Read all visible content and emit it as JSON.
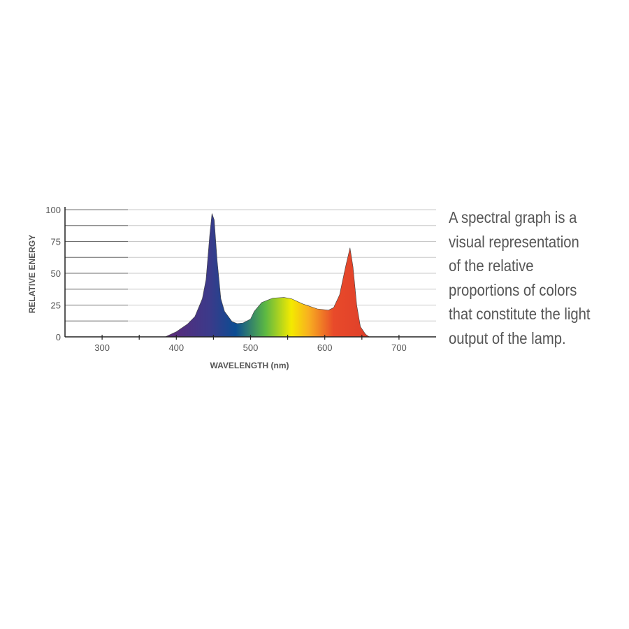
{
  "chart_data": {
    "type": "area",
    "title": "",
    "xlabel": "WAVELENGTH (nm)",
    "ylabel": "RELATIVE ENERGY",
    "xlim": [
      250,
      750
    ],
    "ylim": [
      0,
      100
    ],
    "xticks": [
      300,
      400,
      500,
      600,
      700
    ],
    "xminor_ticks": [
      350,
      450,
      550,
      650
    ],
    "yticks": [
      0,
      25,
      50,
      75,
      100
    ],
    "grid": true,
    "grid_step": 12.5,
    "fill": "visible-spectrum gradient",
    "x": [
      385,
      400,
      415,
      425,
      435,
      440,
      445,
      448,
      451,
      455,
      460,
      465,
      475,
      482,
      490,
      500,
      505,
      515,
      530,
      545,
      555,
      570,
      590,
      605,
      612,
      620,
      628,
      634,
      638,
      643,
      648,
      655,
      660
    ],
    "y": [
      0,
      4,
      10,
      16,
      30,
      45,
      80,
      97,
      92,
      60,
      30,
      20,
      12,
      10.5,
      11,
      14,
      20,
      27,
      30.5,
      31,
      30,
      26,
      22,
      21,
      23,
      33,
      55,
      70,
      55,
      25,
      8,
      2,
      0
    ]
  },
  "colors": {
    "axis": "#222222",
    "grid": "#c8c8c8",
    "text": "#555555",
    "spectrum": [
      {
        "nm": 390,
        "color": "#5b2a7a"
      },
      {
        "nm": 445,
        "color": "#3b3a8a"
      },
      {
        "nm": 480,
        "color": "#0b4c92"
      },
      {
        "nm": 520,
        "color": "#5cb843"
      },
      {
        "nm": 555,
        "color": "#f4ea00"
      },
      {
        "nm": 578,
        "color": "#f8b020"
      },
      {
        "nm": 612,
        "color": "#e84a2a"
      },
      {
        "nm": 655,
        "color": "#e0402a"
      }
    ]
  },
  "description": {
    "lines": [
      "A spectral graph is a",
      "visual representation",
      "of the relative",
      "proportions of colors",
      "that constitute the light",
      "output of the lamp."
    ]
  }
}
